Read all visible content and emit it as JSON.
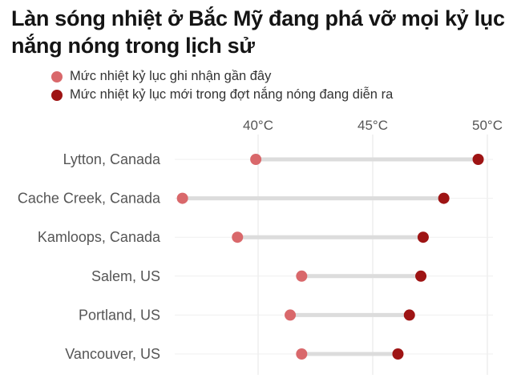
{
  "title": "Làn sóng nhiệt ở Bắc Mỹ đang phá vỡ mọi kỷ lục nắng nóng trong lịch sử",
  "legend": [
    {
      "label": "Mức nhiệt kỷ lục ghi nhận gần đây",
      "color": "#d9686b"
    },
    {
      "label": "Mức nhiệt kỷ lục mới trong đợt nắng nóng đang diễn ra",
      "color": "#9e1414"
    }
  ],
  "chart_data": {
    "type": "dumbbell",
    "categories": [
      "Lytton, Canada",
      "Cache Creek, Canada",
      "Kamloops, Canada",
      "Salem, US",
      "Portland, US",
      "Vancouver, US"
    ],
    "series": [
      {
        "name": "Mức nhiệt kỷ lục ghi nhận gần đây",
        "values": [
          39.9,
          36.7,
          39.1,
          41.9,
          41.4,
          41.9
        ]
      },
      {
        "name": "Mức nhiệt kỷ lục mới trong đợt nắng nóng đang diễn ra",
        "values": [
          49.6,
          48.1,
          47.2,
          47.1,
          46.6,
          46.1
        ]
      }
    ],
    "xlim": [
      35,
      51
    ],
    "x_ticks": [
      40,
      45,
      50
    ],
    "x_tick_labels": [
      "40°C",
      "45°C",
      "50°C"
    ],
    "xlabel": "",
    "ylabel": "",
    "grid": true,
    "colors": {
      "recent": "#d9686b",
      "new": "#9e1414",
      "bar": "#dcdcdc",
      "grid": "#e6e6e6"
    }
  }
}
